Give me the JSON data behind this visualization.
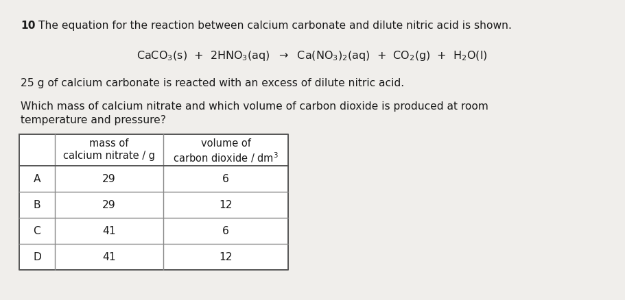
{
  "question_number": "10",
  "question_text": "The equation for the reaction between calcium carbonate and dilute nitric acid is shown.",
  "equation": "CaCO$_3$(s)  +  2HNO$_3$(aq)  $\\rightarrow$  Ca(NO$_3$)$_2$(aq)  +  CO$_2$(g)  +  H$_2$O(l)",
  "context_text": "25 g of calcium carbonate is reacted with an excess of dilute nitric acid.",
  "question_line1": "Which mass of calcium nitrate and which volume of carbon dioxide is produced at room",
  "question_line2": "temperature and pressure?",
  "table": {
    "col1_header_line1": "mass of",
    "col1_header_line2": "calcium nitrate / g",
    "col2_header_line1": "volume of",
    "col2_header_line2": "carbon dioxide / dm",
    "rows": [
      {
        "label": "A",
        "mass": "29",
        "volume": "6"
      },
      {
        "label": "B",
        "mass": "29",
        "volume": "12"
      },
      {
        "label": "C",
        "mass": "41",
        "volume": "6"
      },
      {
        "label": "D",
        "mass": "41",
        "volume": "12"
      }
    ]
  },
  "bg_color": "#f0eeeb",
  "table_bg": "#ffffff",
  "font_color": "#1a1a1a",
  "border_color": "#888888"
}
